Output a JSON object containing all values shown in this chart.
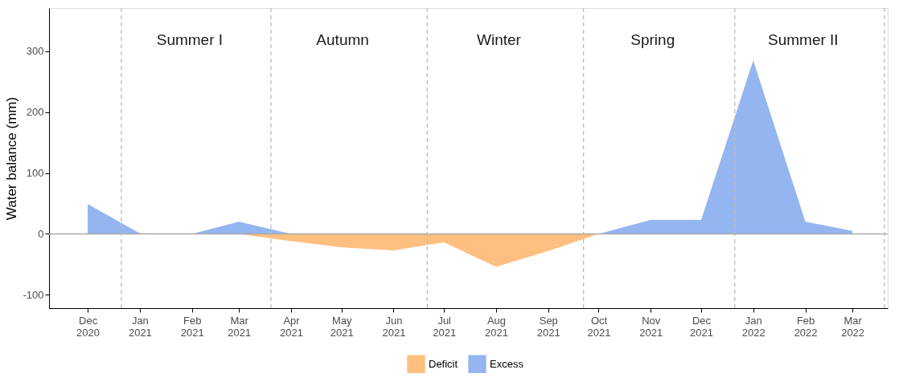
{
  "chart_data": {
    "type": "area",
    "ylabel": "Water balance (mm)",
    "x": [
      "2020-12",
      "2021-01",
      "2021-02",
      "2021-03",
      "2021-04",
      "2021-05",
      "2021-06",
      "2021-07",
      "2021-08",
      "2021-09",
      "2021-10",
      "2021-11",
      "2021-12",
      "2022-01",
      "2022-02",
      "2022-03"
    ],
    "series": [
      {
        "name": "Deficit",
        "color": "#ffbf80",
        "values": [
          0,
          0,
          0,
          0,
          -12,
          -22,
          -27,
          -14,
          -54,
          -28,
          0,
          0,
          0,
          0,
          0,
          0
        ]
      },
      {
        "name": "Excess",
        "color": "#94b5f0",
        "values": [
          49,
          1,
          0,
          20,
          0,
          0,
          0,
          0,
          0,
          0,
          0,
          23,
          23,
          285,
          20,
          5
        ]
      }
    ],
    "xlim": [
      "2020-11-08",
      "2022-03-22"
    ],
    "xticks": [
      {
        "value": "2020-12",
        "label": "Dec 2020"
      },
      {
        "value": "2021-01",
        "label": "Jan 2021"
      },
      {
        "value": "2021-02",
        "label": "Feb 2021"
      },
      {
        "value": "2021-03",
        "label": "Mar 2021"
      },
      {
        "value": "2021-04",
        "label": "Apr 2021"
      },
      {
        "value": "2021-05",
        "label": "May 2021"
      },
      {
        "value": "2021-06",
        "label": "Jun 2021"
      },
      {
        "value": "2021-07",
        "label": "Jul 2021"
      },
      {
        "value": "2021-08",
        "label": "Aug 2021"
      },
      {
        "value": "2021-09",
        "label": "Sep 2021"
      },
      {
        "value": "2021-10",
        "label": "Oct 2021"
      },
      {
        "value": "2021-11",
        "label": "Nov 2021"
      },
      {
        "value": "2021-12",
        "label": "Dec 2021"
      },
      {
        "value": "2022-01",
        "label": "Jan 2022"
      },
      {
        "value": "2022-02",
        "label": "Feb 2022"
      },
      {
        "value": "2022-03",
        "label": "Mar 2022"
      }
    ],
    "ylim": [
      -122,
      371
    ],
    "yticks": [
      -100,
      0,
      100,
      200,
      300
    ],
    "ref_lines": [
      {
        "axis": "y",
        "value": 0,
        "color": "#aaaaaa",
        "line_style": "solid"
      },
      {
        "axis": "x",
        "value": "2020-12-21",
        "color": "#bbbbbb",
        "line_style": "dashed"
      },
      {
        "axis": "x",
        "value": "2021-03-20",
        "color": "#bbbbbb",
        "line_style": "dashed"
      },
      {
        "axis": "x",
        "value": "2021-06-21",
        "color": "#bbbbbb",
        "line_style": "dashed"
      },
      {
        "axis": "x",
        "value": "2021-09-22",
        "color": "#bbbbbb",
        "line_style": "dashed"
      },
      {
        "axis": "x",
        "value": "2021-12-21",
        "color": "#bbbbbb",
        "line_style": "dashed"
      },
      {
        "axis": "x",
        "value": "2022-03-20",
        "color": "#bbbbbb",
        "line_style": "dashed"
      }
    ],
    "annotations": [
      "Summer I",
      "Autumn",
      "Winter",
      "Spring",
      "Summer II"
    ],
    "grid": false,
    "legend": "bottom"
  }
}
